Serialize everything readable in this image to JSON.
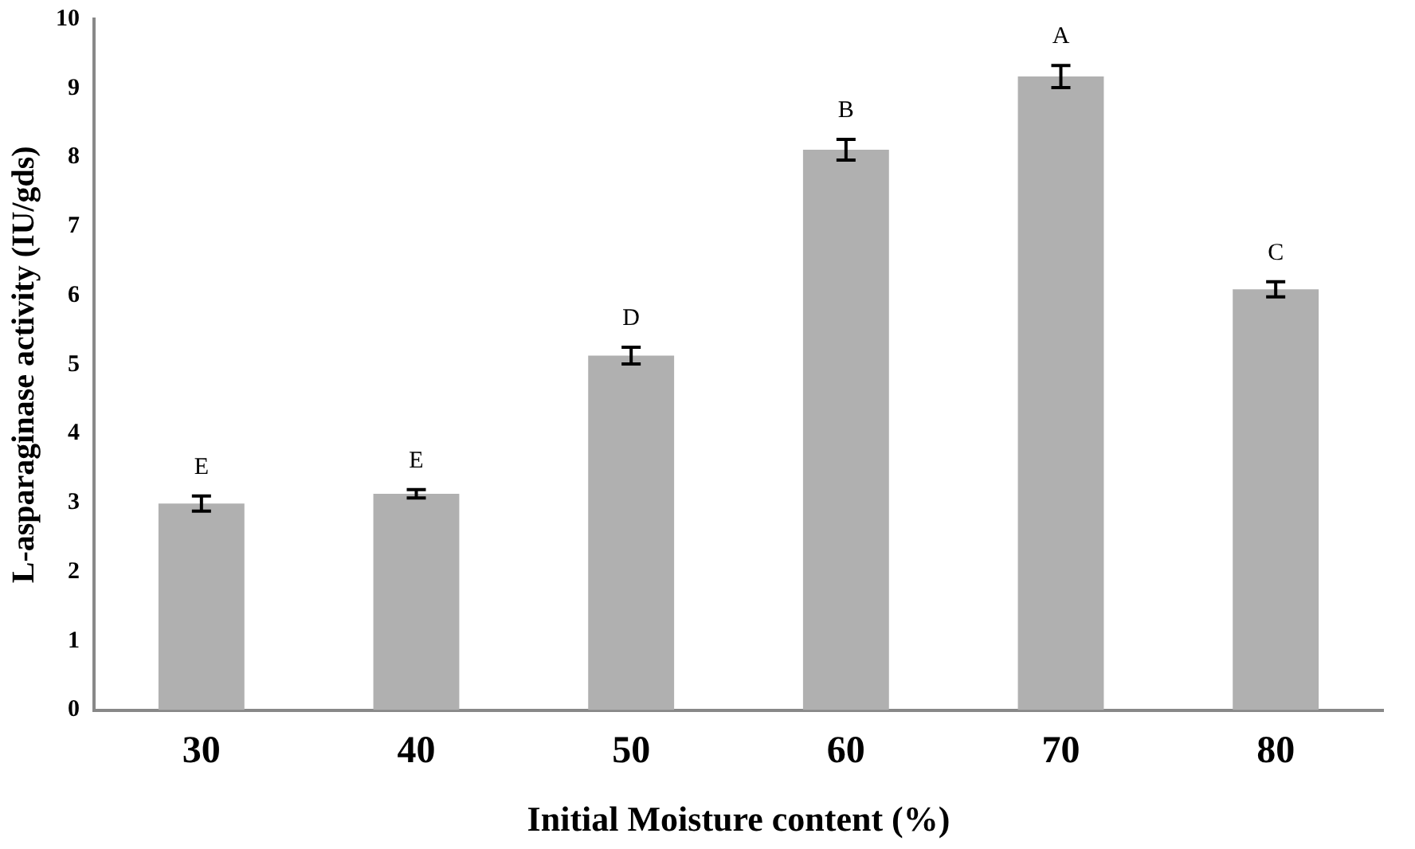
{
  "chart_data": {
    "type": "bar",
    "xlabel": "Initial Moisture content (%)",
    "ylabel": "L-asparaginase activity (IU/gds)",
    "categories": [
      "30",
      "40",
      "50",
      "60",
      "70",
      "80"
    ],
    "values": [
      2.99,
      3.13,
      5.13,
      8.11,
      9.17,
      6.09
    ],
    "errors": [
      0.11,
      0.06,
      0.12,
      0.15,
      0.16,
      0.11
    ],
    "color": "#b0b0b0",
    "ylim": [
      0,
      10
    ],
    "yticks": [
      0,
      1,
      2,
      3,
      4,
      5,
      6,
      7,
      8,
      9,
      10
    ],
    "grid": false,
    "legend": false,
    "annotations": [
      "E",
      "E",
      "D",
      "B",
      "A",
      "C"
    ]
  }
}
